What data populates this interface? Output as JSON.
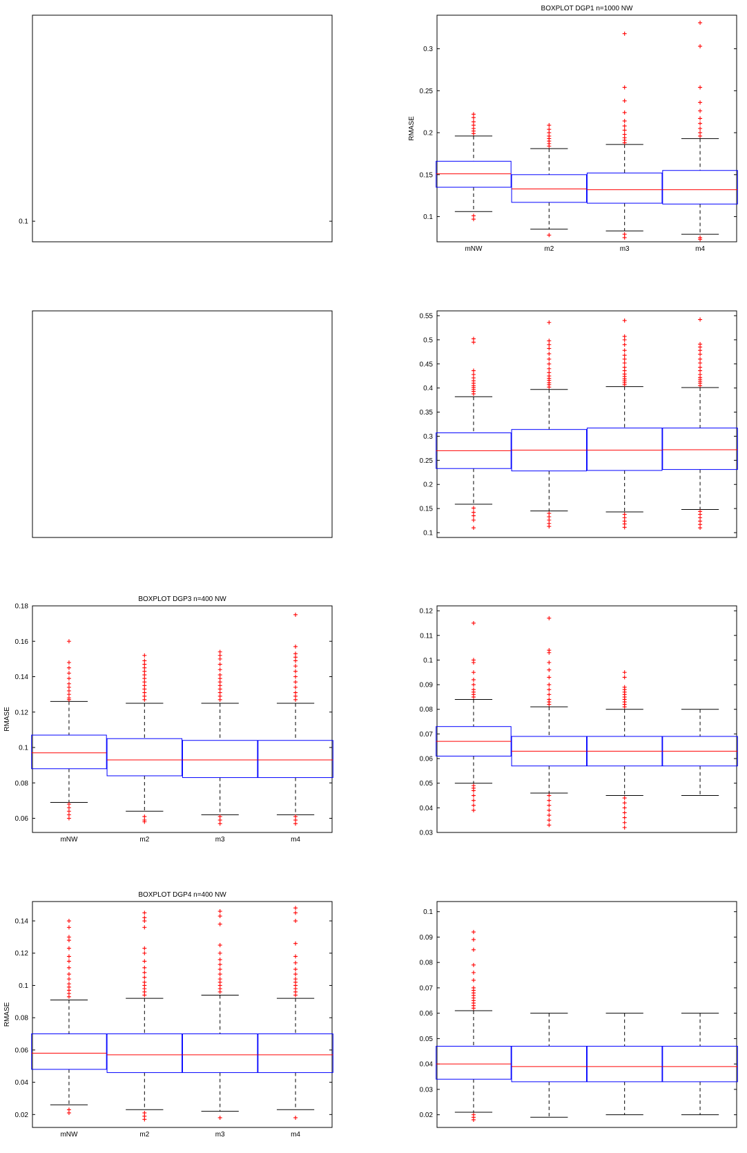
{
  "colors": {
    "box": "#0000ff",
    "median": "#ff0000",
    "whisker": "#000000",
    "outlier": "#ff0000",
    "frame": "#000000"
  },
  "chart_data": [
    {
      "type": "box",
      "title": "",
      "xlabel": "",
      "ylabel": "",
      "ylim": [
        0.09,
        0.2
      ],
      "yticks": [
        0.1
      ],
      "categories": [],
      "boxes": []
    },
    {
      "type": "box",
      "title": "BOXPLOT DGP1 n=1000 NW",
      "xlabel": "",
      "ylabel": "RMASE",
      "ylim": [
        0.07,
        0.34
      ],
      "yticks": [
        0.1,
        0.15,
        0.2,
        0.25,
        0.3
      ],
      "categories": [
        "mNW",
        "m2",
        "m3",
        "m4"
      ],
      "boxes": [
        {
          "low": 0.106,
          "q1": 0.135,
          "median": 0.151,
          "q3": 0.166,
          "high": 0.196,
          "outliers": [
            0.097,
            0.101,
            0.199,
            0.202,
            0.205,
            0.209,
            0.213,
            0.218,
            0.222
          ]
        },
        {
          "low": 0.085,
          "q1": 0.117,
          "median": 0.133,
          "q3": 0.15,
          "high": 0.181,
          "outliers": [
            0.078,
            0.184,
            0.187,
            0.19,
            0.193,
            0.196,
            0.2,
            0.204,
            0.209
          ]
        },
        {
          "low": 0.083,
          "q1": 0.116,
          "median": 0.132,
          "q3": 0.152,
          "high": 0.186,
          "outliers": [
            0.075,
            0.079,
            0.188,
            0.191,
            0.194,
            0.198,
            0.203,
            0.208,
            0.214,
            0.224,
            0.238,
            0.254,
            0.318
          ]
        },
        {
          "low": 0.079,
          "q1": 0.115,
          "median": 0.132,
          "q3": 0.155,
          "high": 0.193,
          "outliers": [
            0.073,
            0.075,
            0.196,
            0.2,
            0.205,
            0.211,
            0.217,
            0.226,
            0.236,
            0.254,
            0.303,
            0.331
          ]
        }
      ]
    },
    {
      "type": "box",
      "title": "",
      "xlabel": "",
      "ylabel": "",
      "ylim": [
        0,
        1
      ],
      "yticks": [],
      "categories": [],
      "boxes": []
    },
    {
      "type": "box",
      "title": "",
      "xlabel": "",
      "ylabel": "",
      "ylim": [
        0.09,
        0.56
      ],
      "yticks": [
        0.1,
        0.15,
        0.2,
        0.25,
        0.3,
        0.35,
        0.4,
        0.45,
        0.5,
        0.55
      ],
      "categories": [],
      "boxes": [
        {
          "low": 0.159,
          "q1": 0.233,
          "median": 0.27,
          "q3": 0.307,
          "high": 0.382,
          "outliers": [
            0.11,
            0.126,
            0.135,
            0.142,
            0.151,
            0.388,
            0.393,
            0.397,
            0.401,
            0.405,
            0.41,
            0.415,
            0.421,
            0.428,
            0.436,
            0.495,
            0.502
          ]
        },
        {
          "low": 0.145,
          "q1": 0.228,
          "median": 0.271,
          "q3": 0.314,
          "high": 0.397,
          "outliers": [
            0.113,
            0.119,
            0.126,
            0.133,
            0.14,
            0.402,
            0.407,
            0.411,
            0.416,
            0.42,
            0.425,
            0.432,
            0.44,
            0.45,
            0.46,
            0.471,
            0.482,
            0.49,
            0.498,
            0.536
          ]
        },
        {
          "low": 0.143,
          "q1": 0.229,
          "median": 0.271,
          "q3": 0.317,
          "high": 0.403,
          "outliers": [
            0.111,
            0.118,
            0.124,
            0.131,
            0.138,
            0.407,
            0.411,
            0.415,
            0.419,
            0.424,
            0.429,
            0.436,
            0.443,
            0.452,
            0.46,
            0.468,
            0.478,
            0.49,
            0.5,
            0.507,
            0.54
          ]
        },
        {
          "low": 0.148,
          "q1": 0.231,
          "median": 0.272,
          "q3": 0.317,
          "high": 0.401,
          "outliers": [
            0.11,
            0.117,
            0.124,
            0.131,
            0.138,
            0.144,
            0.405,
            0.41,
            0.414,
            0.418,
            0.422,
            0.428,
            0.436,
            0.443,
            0.452,
            0.46,
            0.47,
            0.478,
            0.485,
            0.491,
            0.542
          ]
        }
      ]
    },
    {
      "type": "box",
      "title": "BOXPLOT DGP3 n=400 NW",
      "xlabel": "",
      "ylabel": "RMASE",
      "ylim": [
        0.052,
        0.18
      ],
      "yticks": [
        0.06,
        0.08,
        0.1,
        0.12,
        0.14,
        0.16,
        0.18
      ],
      "categories": [
        "mNW",
        "m2",
        "m3",
        "m4"
      ],
      "boxes": [
        {
          "low": 0.069,
          "q1": 0.088,
          "median": 0.097,
          "q3": 0.107,
          "high": 0.126,
          "outliers": [
            0.06,
            0.062,
            0.064,
            0.066,
            0.068,
            0.127,
            0.128,
            0.13,
            0.132,
            0.134,
            0.136,
            0.139,
            0.142,
            0.145,
            0.148,
            0.16
          ]
        },
        {
          "low": 0.064,
          "q1": 0.084,
          "median": 0.093,
          "q3": 0.105,
          "high": 0.125,
          "outliers": [
            0.058,
            0.059,
            0.061,
            0.127,
            0.129,
            0.131,
            0.133,
            0.135,
            0.137,
            0.139,
            0.141,
            0.143,
            0.145,
            0.147,
            0.149,
            0.152
          ]
        },
        {
          "low": 0.062,
          "q1": 0.083,
          "median": 0.093,
          "q3": 0.104,
          "high": 0.125,
          "outliers": [
            0.057,
            0.059,
            0.061,
            0.127,
            0.129,
            0.131,
            0.133,
            0.135,
            0.137,
            0.139,
            0.141,
            0.144,
            0.147,
            0.15,
            0.152,
            0.154
          ]
        },
        {
          "low": 0.062,
          "q1": 0.083,
          "median": 0.093,
          "q3": 0.104,
          "high": 0.125,
          "outliers": [
            0.057,
            0.059,
            0.061,
            0.127,
            0.129,
            0.131,
            0.134,
            0.137,
            0.14,
            0.143,
            0.146,
            0.149,
            0.151,
            0.153,
            0.157,
            0.175
          ]
        }
      ]
    },
    {
      "type": "box",
      "title": "",
      "xlabel": "",
      "ylabel": "",
      "ylim": [
        0.03,
        0.122
      ],
      "yticks": [
        0.03,
        0.04,
        0.05,
        0.06,
        0.07,
        0.08,
        0.09,
        0.1,
        0.11,
        0.12
      ],
      "categories": [],
      "boxes": [
        {
          "low": 0.05,
          "q1": 0.061,
          "median": 0.067,
          "q3": 0.073,
          "high": 0.084,
          "outliers": [
            0.039,
            0.041,
            0.043,
            0.045,
            0.047,
            0.048,
            0.049,
            0.085,
            0.086,
            0.087,
            0.088,
            0.09,
            0.092,
            0.095,
            0.099,
            0.1,
            0.115
          ]
        },
        {
          "low": 0.046,
          "q1": 0.057,
          "median": 0.063,
          "q3": 0.069,
          "high": 0.081,
          "outliers": [
            0.033,
            0.035,
            0.037,
            0.039,
            0.041,
            0.043,
            0.045,
            0.082,
            0.083,
            0.084,
            0.086,
            0.088,
            0.09,
            0.093,
            0.096,
            0.099,
            0.103,
            0.104,
            0.117
          ]
        },
        {
          "low": 0.045,
          "q1": 0.057,
          "median": 0.063,
          "q3": 0.069,
          "high": 0.08,
          "outliers": [
            0.032,
            0.034,
            0.036,
            0.038,
            0.04,
            0.042,
            0.044,
            0.081,
            0.082,
            0.083,
            0.084,
            0.085,
            0.086,
            0.087,
            0.088,
            0.089,
            0.093,
            0.095
          ]
        },
        {
          "low": 0.045,
          "q1": 0.057,
          "median": 0.063,
          "q3": 0.069,
          "high": 0.08,
          "outliers": []
        }
      ]
    },
    {
      "type": "box",
      "title": "BOXPLOT DGP4 n=400 NW",
      "xlabel": "",
      "ylabel": "RMASE",
      "ylim": [
        0.012,
        0.152
      ],
      "yticks": [
        0.02,
        0.04,
        0.06,
        0.08,
        0.1,
        0.12,
        0.14
      ],
      "categories": [
        "mNW",
        "m2",
        "m3",
        "m4"
      ],
      "boxes": [
        {
          "low": 0.026,
          "q1": 0.048,
          "median": 0.058,
          "q3": 0.07,
          "high": 0.091,
          "outliers": [
            0.021,
            0.023,
            0.093,
            0.095,
            0.097,
            0.099,
            0.101,
            0.104,
            0.107,
            0.111,
            0.115,
            0.118,
            0.123,
            0.128,
            0.13,
            0.136,
            0.14
          ]
        },
        {
          "low": 0.023,
          "q1": 0.046,
          "median": 0.057,
          "q3": 0.07,
          "high": 0.092,
          "outliers": [
            0.017,
            0.019,
            0.021,
            0.094,
            0.096,
            0.098,
            0.1,
            0.102,
            0.105,
            0.108,
            0.111,
            0.115,
            0.12,
            0.123,
            0.136,
            0.14,
            0.142,
            0.145
          ]
        },
        {
          "low": 0.022,
          "q1": 0.046,
          "median": 0.057,
          "q3": 0.07,
          "high": 0.094,
          "outliers": [
            0.018,
            0.096,
            0.098,
            0.1,
            0.102,
            0.104,
            0.107,
            0.11,
            0.113,
            0.116,
            0.12,
            0.125,
            0.138,
            0.143,
            0.146
          ]
        },
        {
          "low": 0.023,
          "q1": 0.046,
          "median": 0.057,
          "q3": 0.07,
          "high": 0.092,
          "outliers": [
            0.018,
            0.094,
            0.096,
            0.098,
            0.1,
            0.102,
            0.104,
            0.107,
            0.11,
            0.114,
            0.118,
            0.126,
            0.14,
            0.145,
            0.148
          ]
        }
      ]
    },
    {
      "type": "box",
      "title": "",
      "xlabel": "",
      "ylabel": "",
      "ylim": [
        0.015,
        0.104
      ],
      "yticks": [
        0.02,
        0.03,
        0.04,
        0.05,
        0.06,
        0.07,
        0.08,
        0.09,
        0.1
      ],
      "categories": [],
      "boxes": [
        {
          "low": 0.021,
          "q1": 0.034,
          "median": 0.04,
          "q3": 0.047,
          "high": 0.061,
          "outliers": [
            0.018,
            0.019,
            0.02,
            0.062,
            0.063,
            0.064,
            0.065,
            0.066,
            0.067,
            0.068,
            0.069,
            0.07,
            0.073,
            0.076,
            0.079,
            0.085,
            0.089,
            0.092
          ]
        },
        {
          "low": 0.019,
          "q1": 0.033,
          "median": 0.039,
          "q3": 0.047,
          "high": 0.06,
          "outliers": []
        },
        {
          "low": 0.02,
          "q1": 0.033,
          "median": 0.039,
          "q3": 0.047,
          "high": 0.06,
          "outliers": []
        },
        {
          "low": 0.02,
          "q1": 0.033,
          "median": 0.039,
          "q3": 0.047,
          "high": 0.06,
          "outliers": []
        }
      ]
    }
  ]
}
